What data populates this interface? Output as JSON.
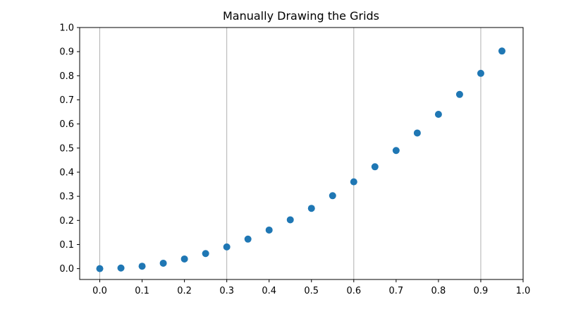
{
  "chart_data": {
    "type": "scatter",
    "title": "Manually Drawing the Grids",
    "xlabel": "",
    "ylabel": "",
    "xlim": [
      -0.0475,
      1.0
    ],
    "ylim": [
      -0.045,
      1.0
    ],
    "x_ticks": [
      0.0,
      0.1,
      0.2,
      0.3,
      0.4,
      0.5,
      0.6,
      0.7,
      0.8,
      0.9,
      1.0
    ],
    "x_tick_labels": [
      "0.0",
      "0.1",
      "0.2",
      "0.3",
      "0.4",
      "0.5",
      "0.6",
      "0.7",
      "0.8",
      "0.9",
      "1.0"
    ],
    "y_ticks": [
      0.0,
      0.1,
      0.2,
      0.3,
      0.4,
      0.5,
      0.6,
      0.7,
      0.8,
      0.9,
      1.0
    ],
    "y_tick_labels": [
      "0.0",
      "0.1",
      "0.2",
      "0.3",
      "0.4",
      "0.5",
      "0.6",
      "0.7",
      "0.8",
      "0.9",
      "1.0"
    ],
    "vertical_grid_x": [
      0.0,
      0.3,
      0.6,
      0.9
    ],
    "grid": "manual vertical lines at x = 0.0, 0.3, 0.6, 0.9",
    "marker_color": "#1f77b4",
    "grid_color": "#b0b0b0",
    "x": [
      0.0,
      0.05,
      0.1,
      0.15,
      0.2,
      0.25,
      0.3,
      0.35,
      0.4,
      0.45,
      0.5,
      0.55,
      0.6,
      0.65,
      0.7,
      0.75,
      0.8,
      0.85,
      0.9,
      0.95
    ],
    "y": [
      0.0,
      0.0025,
      0.01,
      0.0225,
      0.04,
      0.0625,
      0.09,
      0.1225,
      0.16,
      0.2025,
      0.25,
      0.3025,
      0.36,
      0.4225,
      0.49,
      0.5625,
      0.64,
      0.7225,
      0.81,
      0.9025
    ]
  }
}
